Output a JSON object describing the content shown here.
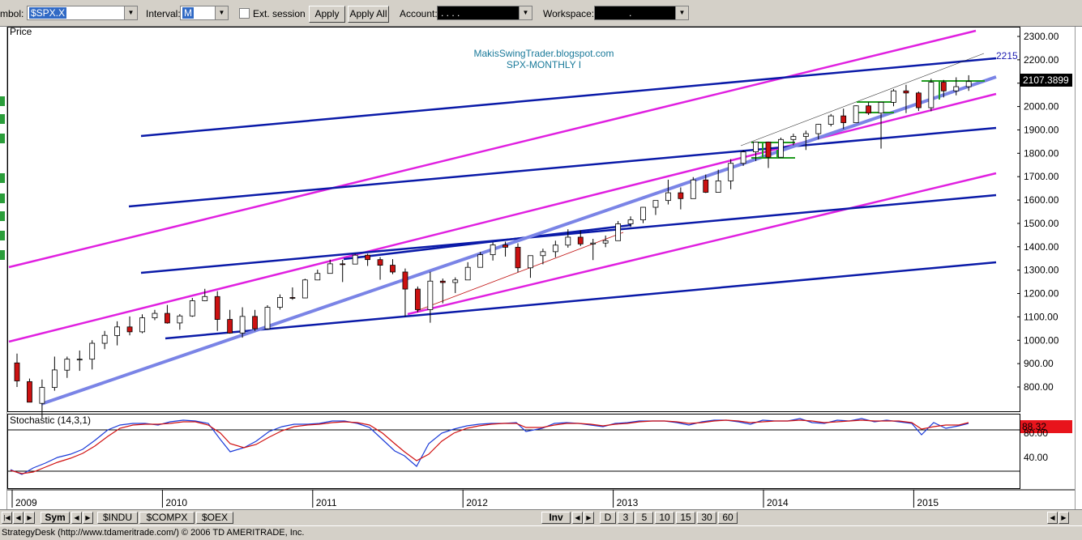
{
  "toolbar": {
    "symbol_label": "mbol:",
    "symbol_value": "$SPX.X",
    "interval_label": "Interval:",
    "interval_value": "M",
    "ext_session_label": "Ext. session",
    "apply_label": "Apply",
    "apply_all_label": "Apply All",
    "account_label": "Account:",
    "account_value": ".   .   .   .",
    "workspace_label": "Workspace:",
    "workspace_value": "."
  },
  "chart": {
    "price_label": "Price",
    "watermark": "MakisSwingTrader.blogspot.com",
    "subtitle": "SPX-MONTHLY  I",
    "target_label": "2215",
    "last_price": "2107.3899",
    "price_ticks": [
      "2300.00",
      "2200.00",
      "2100.00",
      "2000.00",
      "1900.00",
      "1800.00",
      "1700.00",
      "1600.00",
      "1500.00",
      "1400.00",
      "1300.00",
      "1200.00",
      "1100.00",
      "1000.00",
      "900.00",
      "800.00"
    ],
    "stochastic_label": "Stochastic (14,3,1)",
    "stochastic_value": "88.32",
    "stoch_ticks": [
      "80.00",
      "40.00"
    ],
    "years": [
      "2009",
      "2010",
      "2011",
      "2012",
      "2013",
      "2014",
      "2015"
    ],
    "colors": {
      "magenta": "#e020e0",
      "blue": "#0a1aa8",
      "lightblue": "#7a84e6",
      "green": "#1f9a1f",
      "red": "#cc1111",
      "stoch_k": "#1a3ad8",
      "stoch_d": "#d01010"
    }
  },
  "chart_data": {
    "type": "candlestick",
    "title": "SPX-MONTHLY  I",
    "x_start": "2009-01",
    "interval": "monthly",
    "ylim": [
      730,
      2330
    ],
    "ohlc": [
      [
        903,
        943,
        800,
        826
      ],
      [
        823,
        836,
        735,
        735
      ],
      [
        730,
        832,
        667,
        798
      ],
      [
        798,
        930,
        784,
        873
      ],
      [
        872,
        930,
        839,
        919
      ],
      [
        919,
        956,
        869,
        919
      ],
      [
        919,
        1000,
        875,
        987
      ],
      [
        987,
        1040,
        962,
        1021
      ],
      [
        1020,
        1081,
        978,
        1057
      ],
      [
        1057,
        1102,
        1021,
        1036
      ],
      [
        1036,
        1111,
        1030,
        1096
      ],
      [
        1096,
        1130,
        1086,
        1115
      ],
      [
        1115,
        1151,
        1071,
        1074
      ],
      [
        1074,
        1112,
        1045,
        1104
      ],
      [
        1104,
        1181,
        1100,
        1169
      ],
      [
        1169,
        1220,
        1167,
        1187
      ],
      [
        1187,
        1210,
        1040,
        1089
      ],
      [
        1089,
        1130,
        1028,
        1031
      ],
      [
        1031,
        1141,
        1011,
        1102
      ],
      [
        1102,
        1130,
        1040,
        1049
      ],
      [
        1049,
        1150,
        1045,
        1141
      ],
      [
        1141,
        1196,
        1131,
        1183
      ],
      [
        1183,
        1226,
        1173,
        1181
      ],
      [
        1181,
        1263,
        1180,
        1258
      ],
      [
        1258,
        1302,
        1257,
        1286
      ],
      [
        1286,
        1345,
        1285,
        1327
      ],
      [
        1327,
        1344,
        1249,
        1326
      ],
      [
        1326,
        1370,
        1326,
        1364
      ],
      [
        1364,
        1370,
        1318,
        1345
      ],
      [
        1345,
        1356,
        1259,
        1321
      ],
      [
        1321,
        1347,
        1283,
        1292
      ],
      [
        1292,
        1307,
        1101,
        1219
      ],
      [
        1219,
        1230,
        1120,
        1131
      ],
      [
        1131,
        1293,
        1075,
        1253
      ],
      [
        1253,
        1264,
        1158,
        1247
      ],
      [
        1247,
        1269,
        1202,
        1258
      ],
      [
        1258,
        1334,
        1258,
        1312
      ],
      [
        1312,
        1378,
        1312,
        1366
      ],
      [
        1366,
        1419,
        1341,
        1408
      ],
      [
        1408,
        1422,
        1358,
        1398
      ],
      [
        1398,
        1415,
        1291,
        1310
      ],
      [
        1310,
        1363,
        1267,
        1362
      ],
      [
        1362,
        1392,
        1325,
        1379
      ],
      [
        1379,
        1426,
        1355,
        1407
      ],
      [
        1407,
        1475,
        1396,
        1441
      ],
      [
        1441,
        1470,
        1403,
        1412
      ],
      [
        1412,
        1434,
        1343,
        1416
      ],
      [
        1416,
        1448,
        1398,
        1426
      ],
      [
        1426,
        1510,
        1426,
        1498
      ],
      [
        1498,
        1530,
        1485,
        1515
      ],
      [
        1515,
        1570,
        1501,
        1569
      ],
      [
        1569,
        1598,
        1536,
        1598
      ],
      [
        1598,
        1687,
        1581,
        1631
      ],
      [
        1631,
        1654,
        1560,
        1606
      ],
      [
        1606,
        1698,
        1606,
        1686
      ],
      [
        1686,
        1709,
        1630,
        1633
      ],
      [
        1633,
        1730,
        1633,
        1682
      ],
      [
        1682,
        1775,
        1646,
        1757
      ],
      [
        1757,
        1813,
        1746,
        1806
      ],
      [
        1806,
        1849,
        1767,
        1848
      ],
      [
        1848,
        1850,
        1737,
        1783
      ],
      [
        1783,
        1867,
        1782,
        1859
      ],
      [
        1859,
        1884,
        1834,
        1872
      ],
      [
        1872,
        1897,
        1814,
        1884
      ],
      [
        1884,
        1926,
        1859,
        1924
      ],
      [
        1924,
        1968,
        1915,
        1960
      ],
      [
        1960,
        1991,
        1904,
        1931
      ],
      [
        1931,
        2005,
        1931,
        2003
      ],
      [
        2003,
        2019,
        1964,
        1972
      ],
      [
        1972,
        2018,
        1820,
        2018
      ],
      [
        2018,
        2075,
        2001,
        2067
      ],
      [
        2067,
        2093,
        1972,
        2058
      ],
      [
        2058,
        2064,
        1981,
        1995
      ],
      [
        1995,
        2119,
        1980,
        2104
      ],
      [
        2104,
        2114,
        2039,
        2067
      ],
      [
        2067,
        2125,
        2048,
        2085
      ],
      [
        2085,
        2134,
        2067,
        2107
      ]
    ],
    "stochastic": {
      "name": "Stochastic (14,3,1)",
      "last": 88.32,
      "levels": [
        80,
        20
      ]
    }
  }
}
